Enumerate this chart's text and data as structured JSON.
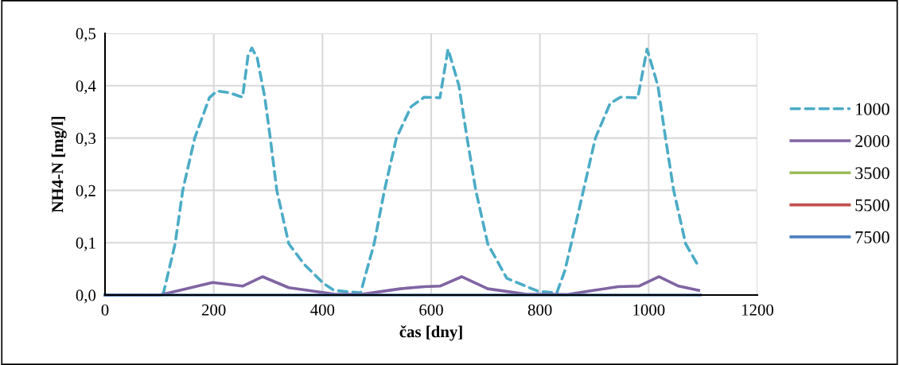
{
  "chart_data": {
    "type": "line",
    "xlabel": "čas [dny]",
    "ylabel": "NH4-N [mg/l]",
    "xlim": [
      0,
      1200
    ],
    "xticks": [
      0,
      200,
      400,
      600,
      800,
      1000,
      1200
    ],
    "ylim": [
      0,
      0.5
    ],
    "yticks": [
      {
        "value": 0,
        "label": "0,0"
      },
      {
        "value": 0.1,
        "label": "0,1"
      },
      {
        "value": 0.2,
        "label": "0,2"
      },
      {
        "value": 0.3,
        "label": "0,3"
      },
      {
        "value": 0.4,
        "label": "0,4"
      },
      {
        "value": 0.5,
        "label": "0,5"
      }
    ],
    "grid": true,
    "legend": "right",
    "series": [
      {
        "name": "1000",
        "color": "#4bacc6",
        "line_style": "dashed",
        "x": [
          0,
          105,
          108,
          129,
          143,
          165,
          192,
          206,
          227,
          253,
          263,
          270,
          280,
          294,
          304,
          316,
          338,
          367,
          402,
          421,
          470,
          495,
          514,
          536,
          563,
          587,
          616,
          631,
          651,
          666,
          682,
          704,
          739,
          797,
          831,
          846,
          863,
          880,
          902,
          929,
          948,
          980,
          997,
          1017,
          1031,
          1046,
          1068,
          1090
        ],
        "values": [
          0,
          0,
          0.006,
          0.098,
          0.2,
          0.3,
          0.377,
          0.39,
          0.387,
          0.378,
          0.457,
          0.472,
          0.453,
          0.377,
          0.3,
          0.2,
          0.098,
          0.058,
          0.022,
          0.009,
          0.004,
          0.098,
          0.2,
          0.3,
          0.36,
          0.378,
          0.377,
          0.47,
          0.4,
          0.3,
          0.2,
          0.098,
          0.032,
          0.007,
          0.004,
          0.047,
          0.123,
          0.2,
          0.3,
          0.366,
          0.378,
          0.377,
          0.47,
          0.4,
          0.3,
          0.2,
          0.098,
          0.058
        ]
      },
      {
        "name": "2000",
        "color": "#8064a2",
        "line_style": "solid",
        "x": [
          0,
          101,
          158,
          198,
          253,
          290,
          338,
          421,
          470,
          543,
          587,
          616,
          656,
          704,
          773,
          851,
          900,
          944,
          982,
          1019,
          1055,
          1092
        ],
        "values": [
          0,
          0,
          0.014,
          0.024,
          0.017,
          0.035,
          0.014,
          0.002,
          0.001,
          0.012,
          0.016,
          0.017,
          0.035,
          0.012,
          0.002,
          0.001,
          0.009,
          0.016,
          0.017,
          0.035,
          0.017,
          0.009
        ]
      },
      {
        "name": "3500",
        "color": "#9bbb59",
        "line_style": "solid"
      },
      {
        "name": "5500",
        "color": "#c0504d",
        "line_style": "solid"
      },
      {
        "name": "7500",
        "color": "#4f81bd",
        "line_style": "solid",
        "x": [
          0,
          1095
        ],
        "values": [
          0,
          0
        ]
      }
    ]
  }
}
